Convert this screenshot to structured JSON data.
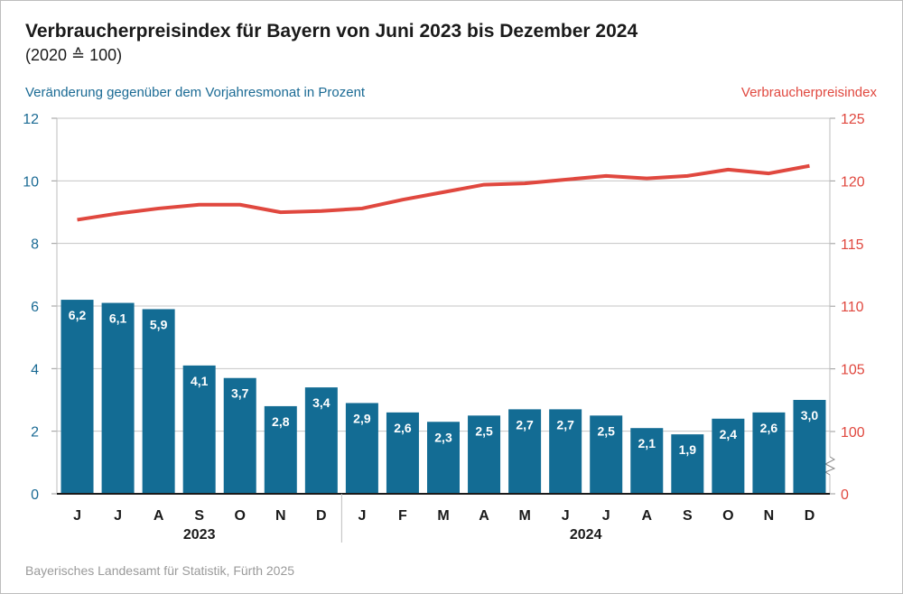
{
  "chart_data": {
    "type": "bar+line",
    "title": "Verbraucherpreisindex für Bayern von Juni 2023 bis Dezember 2024",
    "subtitle": "(2020 ≙ 100)",
    "ylabel_left": "Veränderung gegenüber dem Vorjahresmonat in Prozent",
    "ylabel_right": "Verbraucherpreisindex",
    "source": "Bayerisches Landesamt für Statistik, Fürth 2025",
    "categories": [
      "J",
      "J",
      "A",
      "S",
      "O",
      "N",
      "D",
      "J",
      "F",
      "M",
      "A",
      "M",
      "J",
      "J",
      "A",
      "S",
      "O",
      "N",
      "D"
    ],
    "year_groups": [
      {
        "label": "2023",
        "count": 7
      },
      {
        "label": "2024",
        "count": 12
      }
    ],
    "bar_series": {
      "axis": "left",
      "color": "#136c94",
      "values": [
        6.2,
        6.1,
        5.9,
        4.1,
        3.7,
        2.8,
        3.4,
        2.9,
        2.6,
        2.3,
        2.5,
        2.7,
        2.7,
        2.5,
        2.1,
        1.9,
        2.4,
        2.6,
        3.0
      ],
      "labels": [
        "6,2",
        "6,1",
        "5,9",
        "4,1",
        "3,7",
        "2,8",
        "3,4",
        "2,9",
        "2,6",
        "2,3",
        "2,5",
        "2,7",
        "2,7",
        "2,5",
        "2,1",
        "1,9",
        "2,4",
        "2,6",
        "3,0"
      ]
    },
    "line_series": {
      "axis": "right",
      "color": "#e0483f",
      "values": [
        116.9,
        117.4,
        117.8,
        118.1,
        118.1,
        117.5,
        117.6,
        117.8,
        118.5,
        119.1,
        119.7,
        119.8,
        120.1,
        120.4,
        120.2,
        120.4,
        120.9,
        120.6,
        121.2
      ]
    },
    "left_axis": {
      "ylim": [
        0,
        12
      ],
      "ticks": [
        "0",
        "2",
        "4",
        "6",
        "8",
        "10",
        "12"
      ],
      "color": "#1a6a94"
    },
    "right_axis": {
      "ylim": [
        100,
        125
      ],
      "ticks": [
        "100",
        "105",
        "110",
        "115",
        "120",
        "125"
      ],
      "zero_label": "0",
      "axis_break": true,
      "color": "#e0483f"
    },
    "grid": true
  }
}
